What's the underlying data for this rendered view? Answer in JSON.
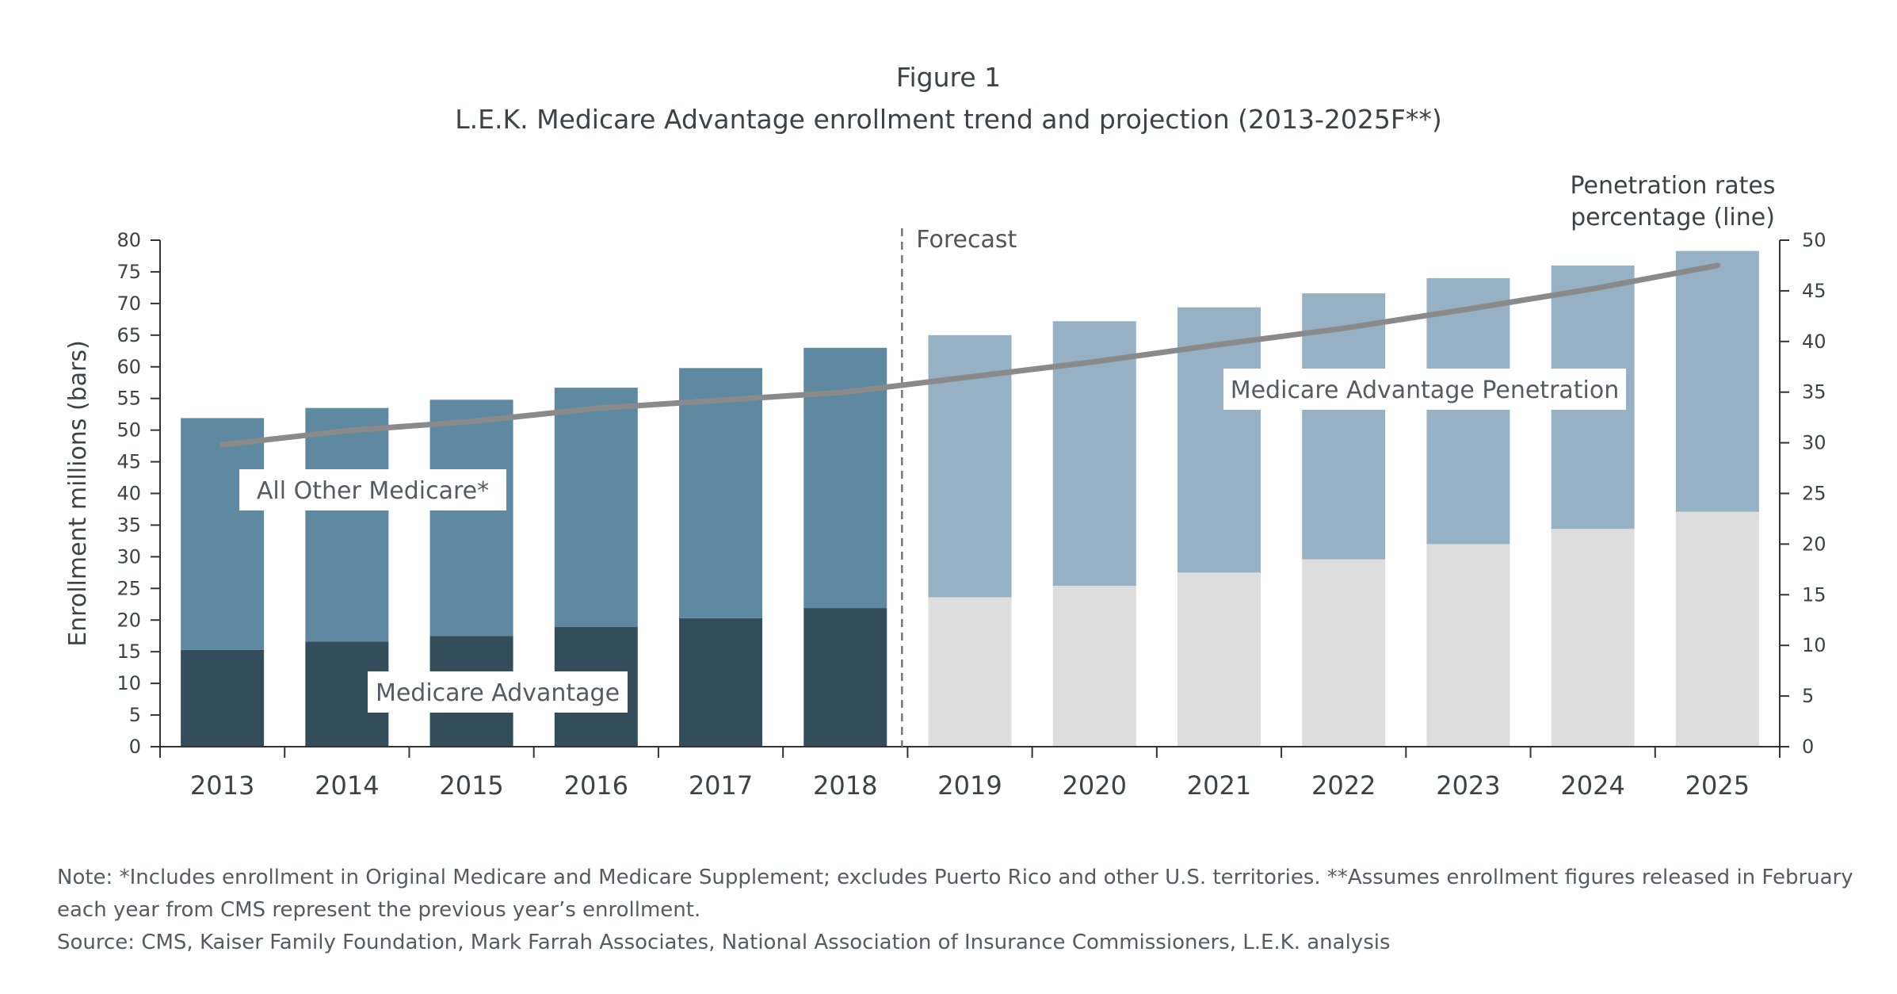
{
  "figure_label": "Figure 1",
  "title": "L.E.K. Medicare Advantage enrollment trend and projection (2013-2025F**)",
  "chart_data": {
    "type": "bar",
    "stacked": true,
    "categories": [
      "2013",
      "2014",
      "2015",
      "2016",
      "2017",
      "2018",
      "2019",
      "2020",
      "2021",
      "2022",
      "2023",
      "2024",
      "2025"
    ],
    "forecast_start": "2019",
    "forecast_label": "Forecast",
    "ylabel": "Enrollment millions (bars)",
    "ylim": [
      0,
      80
    ],
    "yticks": [
      "0",
      "5",
      "10",
      "15",
      "20",
      "25",
      "30",
      "35",
      "40",
      "45",
      "50",
      "55",
      "60",
      "65",
      "70",
      "75",
      "80"
    ],
    "y2label": "Penetration rates percentage (line)",
    "y2label_lines": [
      "Penetration rates",
      "percentage (line)"
    ],
    "y2lim": [
      0,
      50
    ],
    "y2ticks": [
      "0",
      "5",
      "10",
      "15",
      "20",
      "25",
      "30",
      "35",
      "40",
      "45",
      "50"
    ],
    "series": [
      {
        "name": "Medicare Advantage",
        "values": [
          15.3,
          16.6,
          17.5,
          18.9,
          20.3,
          21.9,
          23.6,
          25.4,
          27.5,
          29.6,
          32.0,
          34.4,
          37.1
        ],
        "color": "#344d5a",
        "forecast_color": "#dddddd"
      },
      {
        "name": "All Other Medicare*",
        "values": [
          36.6,
          36.9,
          37.3,
          37.8,
          39.5,
          41.1,
          41.4,
          41.8,
          41.9,
          42.0,
          42.0,
          41.6,
          41.2
        ],
        "color": "#5f88a1",
        "forecast_color": "#96b0c4"
      }
    ],
    "line": {
      "name": "Medicare Advantage Penetration",
      "values": [
        29.8,
        31.2,
        32.1,
        33.4,
        34.2,
        35.0,
        36.5,
        38.0,
        39.7,
        41.3,
        43.2,
        45.2,
        47.5
      ],
      "color": "#8a8a8a"
    },
    "labels": {
      "all_other": "All Other Medicare*",
      "medicare_advantage": "Medicare Advantage",
      "penetration": "Medicare Advantage Penetration"
    }
  },
  "notes": {
    "line1": "Note: *Includes enrollment in Original Medicare and Medicare Supplement; excludes Puerto Rico and other U.S. territories. **Assumes enrollment figures released in February",
    "line2": "each year from CMS represent the previous year’s enrollment.",
    "line3": "Source: CMS, Kaiser Family Foundation, Mark Farrah Associates, National Association of Insurance Commissioners, L.E.K. analysis"
  }
}
